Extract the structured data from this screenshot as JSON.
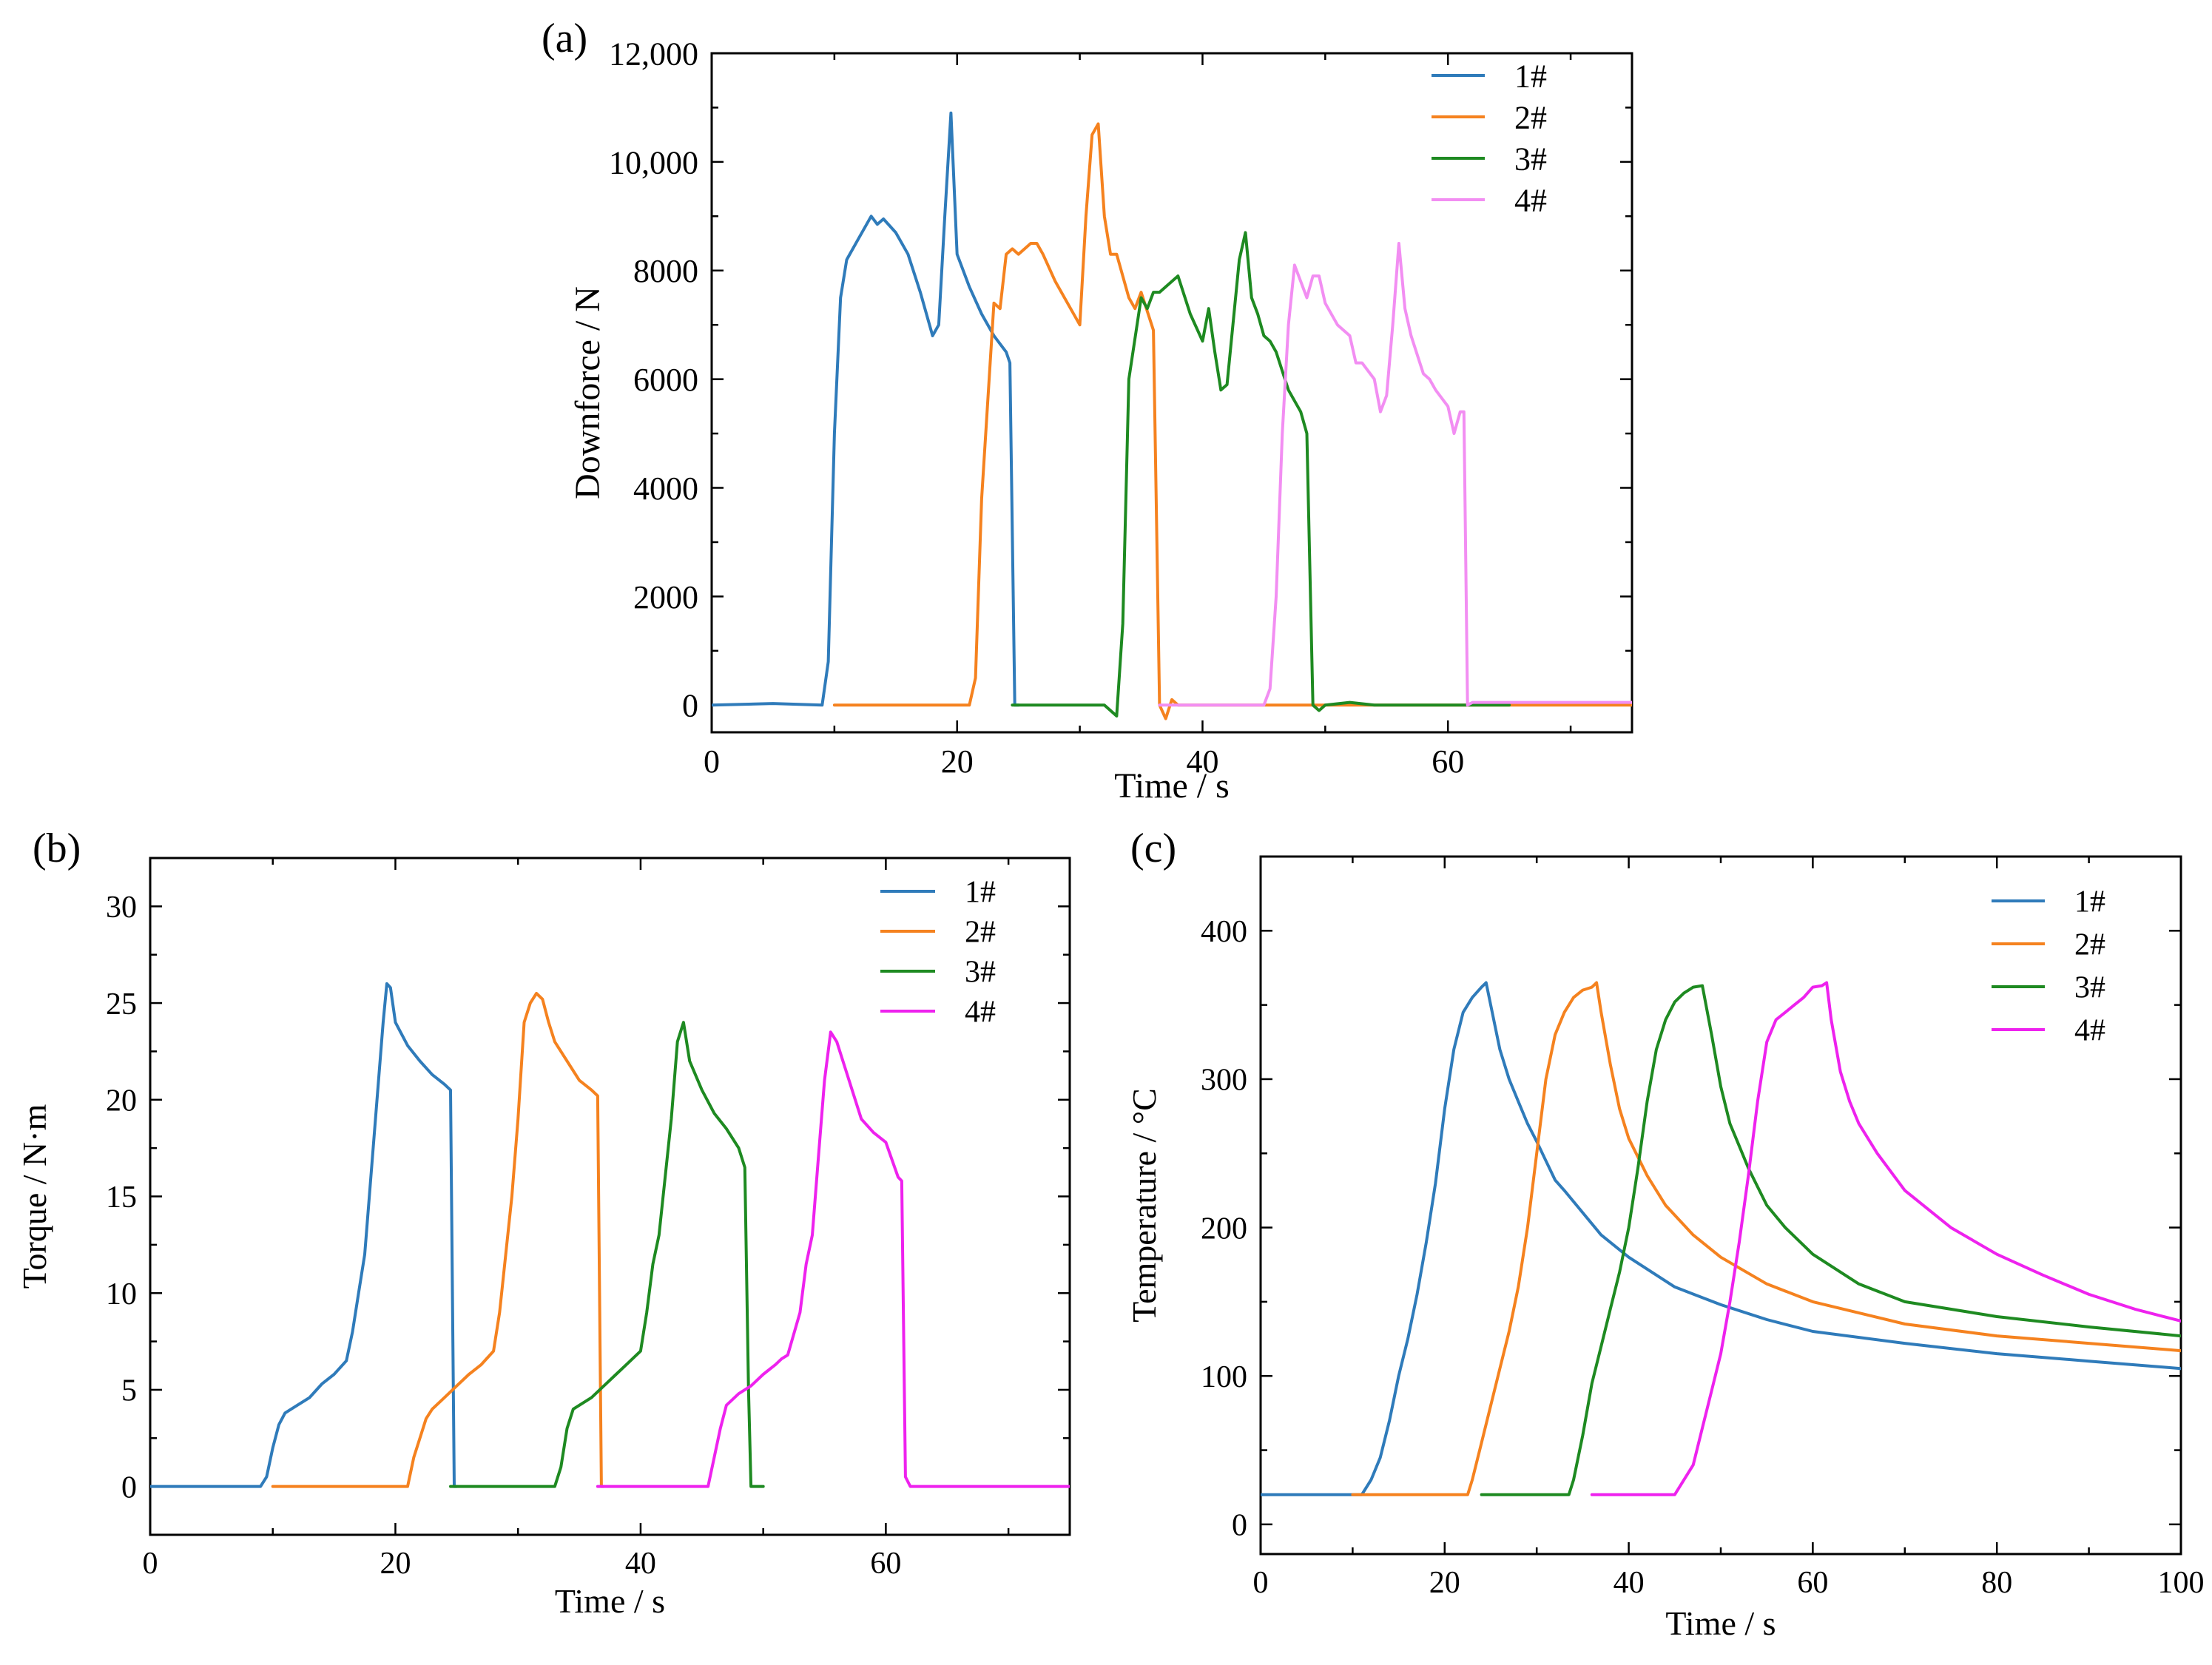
{
  "figure": {
    "panel_labels": [
      "(a)",
      "(b)",
      "(c)"
    ]
  },
  "chart_data": [
    {
      "type": "line",
      "panel": "(a)",
      "title": "",
      "xlabel": "Time / s",
      "ylabel": "Downforce / N",
      "xlim": [
        0,
        75
      ],
      "ylim": [
        -500,
        12000
      ],
      "xticks": [
        0,
        20,
        40,
        60
      ],
      "xtick_labels": [
        "0",
        "20",
        "40",
        "60"
      ],
      "yticks": [
        0,
        2000,
        4000,
        6000,
        8000,
        10000,
        12000
      ],
      "ytick_labels": [
        "0",
        "2000",
        "4000",
        "6000",
        "8000",
        "10,000",
        "12,000"
      ],
      "legend_position": "top-right",
      "series": [
        {
          "name": "1#",
          "color": "#2f7bba",
          "x": [
            0,
            5,
            9,
            9.5,
            10,
            10.5,
            11,
            12,
            13,
            13.5,
            14,
            15,
            16,
            17,
            18,
            18.5,
            19,
            19.5,
            20,
            21,
            22,
            23,
            24,
            24.3,
            24.7,
            25
          ],
          "y": [
            0,
            30,
            0,
            800,
            5000,
            7500,
            8200,
            8600,
            9000,
            8850,
            8950,
            8700,
            8300,
            7600,
            6800,
            7000,
            9000,
            10900,
            8300,
            7700,
            7200,
            6800,
            6500,
            6300,
            0,
            0
          ]
        },
        {
          "name": "2#",
          "color": "#f5821f",
          "x": [
            10,
            20,
            21,
            21.5,
            22,
            23,
            23.5,
            24,
            24.5,
            25,
            26,
            26.5,
            27,
            28,
            29,
            30,
            30.5,
            31,
            31.5,
            32,
            32.5,
            33,
            34,
            34.5,
            35,
            36,
            36.5,
            37,
            37.5,
            38,
            40,
            45,
            50,
            55,
            60,
            65,
            70,
            75
          ],
          "y": [
            0,
            0,
            0,
            500,
            3800,
            7400,
            7300,
            8300,
            8400,
            8300,
            8500,
            8500,
            8300,
            7800,
            7400,
            7000,
            9000,
            10500,
            10700,
            9000,
            8300,
            8300,
            7500,
            7300,
            7600,
            6900,
            0,
            -250,
            100,
            0,
            0,
            0,
            0,
            0,
            0,
            0,
            0,
            0
          ]
        },
        {
          "name": "3#",
          "color": "#1e8a21",
          "x": [
            24.5,
            30,
            32,
            33,
            33.5,
            34,
            35,
            35.5,
            36,
            36.5,
            37,
            38,
            39,
            40,
            40.5,
            41,
            41.5,
            42,
            43,
            43.5,
            44,
            44.5,
            45,
            45.5,
            46,
            47,
            48,
            48.5,
            49,
            49.5,
            50,
            52,
            54,
            60,
            65
          ],
          "y": [
            0,
            0,
            0,
            -200,
            1500,
            6000,
            7500,
            7300,
            7600,
            7600,
            7700,
            7900,
            7200,
            6700,
            7300,
            6500,
            5800,
            5900,
            8200,
            8700,
            7500,
            7200,
            6800,
            6700,
            6500,
            5800,
            5400,
            5000,
            0,
            -100,
            0,
            50,
            0,
            0,
            0
          ]
        },
        {
          "name": "4#",
          "color": "#f28ef2",
          "x": [
            36.5,
            42,
            45,
            45.5,
            46,
            46.5,
            47,
            47.5,
            48,
            48.5,
            49,
            49.5,
            50,
            51,
            52,
            52.5,
            53,
            54,
            54.5,
            55,
            55.5,
            56,
            56.5,
            57,
            58,
            58.5,
            59,
            60,
            60.5,
            61,
            61.3,
            61.6,
            62,
            65,
            70,
            75
          ],
          "y": [
            0,
            0,
            0,
            300,
            2000,
            5000,
            7000,
            8100,
            7800,
            7500,
            7900,
            7900,
            7400,
            7000,
            6800,
            6300,
            6300,
            6000,
            5400,
            5700,
            7000,
            8500,
            7300,
            6800,
            6100,
            6000,
            5800,
            5500,
            5000,
            5400,
            5400,
            0,
            50,
            50,
            50,
            50
          ]
        }
      ]
    },
    {
      "type": "line",
      "panel": "(b)",
      "title": "",
      "xlabel": "Time / s",
      "ylabel": "Torque / N·m",
      "xlim": [
        0,
        75
      ],
      "ylim": [
        -2.5,
        32.5
      ],
      "xticks": [
        0,
        20,
        40,
        60
      ],
      "xtick_labels": [
        "0",
        "20",
        "40",
        "60"
      ],
      "yticks": [
        0,
        5,
        10,
        15,
        20,
        25,
        30
      ],
      "ytick_labels": [
        "0",
        "5",
        "10",
        "15",
        "20",
        "25",
        "30"
      ],
      "legend_position": "top-right",
      "series": [
        {
          "name": "1#",
          "color": "#2f7bba",
          "x": [
            0,
            9,
            9.5,
            10,
            10.5,
            11,
            12,
            13,
            14,
            15,
            16,
            16.5,
            17,
            17.5,
            18,
            18.5,
            19,
            19.3,
            19.6,
            20,
            21,
            22,
            23,
            24,
            24.5,
            24.8,
            25
          ],
          "y": [
            0,
            0,
            0.5,
            2,
            3.2,
            3.8,
            4.2,
            4.6,
            5.3,
            5.8,
            6.5,
            8,
            10,
            12,
            16,
            20,
            24,
            26,
            25.8,
            24,
            22.8,
            22,
            21.3,
            20.8,
            20.5,
            0,
            0
          ]
        },
        {
          "name": "2#",
          "color": "#f5821f",
          "x": [
            10,
            21,
            21.5,
            22,
            22.5,
            23,
            24,
            25,
            26,
            27,
            28,
            28.5,
            29,
            29.5,
            30,
            30.5,
            31,
            31.5,
            32,
            32.5,
            33,
            34,
            35,
            36,
            36.5,
            36.8,
            37
          ],
          "y": [
            0,
            0,
            1.5,
            2.5,
            3.5,
            4,
            4.6,
            5.2,
            5.8,
            6.3,
            7,
            9,
            12,
            15,
            19,
            24,
            25,
            25.5,
            25.2,
            24,
            23,
            22,
            21,
            20.5,
            20.2,
            0,
            0
          ]
        },
        {
          "name": "3#",
          "color": "#1e8a21",
          "x": [
            24.5,
            33,
            33.5,
            34,
            34.5,
            35,
            36,
            37,
            38,
            39,
            40,
            40.5,
            41,
            41.5,
            42,
            42.5,
            43,
            43.5,
            44,
            45,
            46,
            47,
            48,
            48.5,
            48.8,
            49,
            50
          ],
          "y": [
            0,
            0,
            1,
            3,
            4,
            4.2,
            4.6,
            5.2,
            5.8,
            6.4,
            7,
            9,
            11.5,
            13,
            16,
            19,
            23,
            24,
            22,
            20.5,
            19.3,
            18.5,
            17.5,
            16.5,
            5,
            0,
            0
          ]
        },
        {
          "name": "4#",
          "color": "#ee22ee",
          "x": [
            36.5,
            45.5,
            46,
            46.5,
            47,
            48,
            49,
            50,
            51,
            51.5,
            52,
            53,
            53.5,
            54,
            54.5,
            55,
            55.5,
            56,
            57,
            58,
            59,
            60,
            61,
            61.3,
            61.6,
            62,
            75
          ],
          "y": [
            0,
            0,
            1.5,
            3,
            4.2,
            4.8,
            5.2,
            5.8,
            6.3,
            6.6,
            6.8,
            9,
            11.5,
            13,
            17,
            21,
            23.5,
            23,
            21,
            19,
            18.3,
            17.8,
            16,
            15.8,
            0.5,
            0,
            0
          ]
        }
      ]
    },
    {
      "type": "line",
      "panel": "(c)",
      "title": "",
      "xlabel": "Time / s",
      "ylabel": "Temperature / °C",
      "xlim": [
        0,
        100
      ],
      "ylim": [
        -20,
        450
      ],
      "xticks": [
        0,
        20,
        40,
        60,
        80,
        100
      ],
      "xtick_labels": [
        "0",
        "20",
        "40",
        "60",
        "80",
        "100"
      ],
      "yticks": [
        0,
        100,
        200,
        300,
        400
      ],
      "ytick_labels": [
        "0",
        "100",
        "200",
        "300",
        "400"
      ],
      "legend_position": "top-right",
      "series": [
        {
          "name": "1#",
          "color": "#2f7bba",
          "x": [
            0,
            11,
            12,
            13,
            14,
            15,
            16,
            17,
            18,
            19,
            20,
            21,
            22,
            23,
            24,
            24.5,
            25,
            26,
            27,
            28,
            29,
            30,
            31,
            32,
            33,
            35,
            37,
            40,
            45,
            50,
            55,
            60,
            70,
            80,
            90,
            100
          ],
          "y": [
            20,
            20,
            30,
            45,
            70,
            100,
            125,
            155,
            190,
            230,
            280,
            320,
            345,
            355,
            362,
            365,
            350,
            320,
            300,
            285,
            270,
            258,
            245,
            232,
            225,
            210,
            195,
            180,
            160,
            148,
            138,
            130,
            122,
            115,
            110,
            105
          ]
        },
        {
          "name": "2#",
          "color": "#f5821f",
          "x": [
            10,
            22.5,
            23,
            24,
            25,
            26,
            27,
            28,
            29,
            30,
            31,
            32,
            33,
            34,
            35,
            36,
            36.5,
            37,
            38,
            39,
            40,
            42,
            44,
            47,
            50,
            55,
            60,
            70,
            80,
            90,
            100
          ],
          "y": [
            20,
            20,
            30,
            55,
            80,
            105,
            130,
            160,
            200,
            250,
            300,
            330,
            345,
            355,
            360,
            362,
            365,
            345,
            310,
            280,
            260,
            235,
            215,
            195,
            180,
            162,
            150,
            135,
            127,
            122,
            117
          ]
        },
        {
          "name": "3#",
          "color": "#1e8a21",
          "x": [
            24,
            33.5,
            34,
            35,
            36,
            37,
            38,
            39,
            40,
            41,
            42,
            43,
            44,
            45,
            46,
            47,
            48,
            49,
            50,
            51,
            52,
            53,
            55,
            57,
            60,
            65,
            70,
            80,
            90,
            100
          ],
          "y": [
            20,
            20,
            30,
            60,
            95,
            120,
            145,
            170,
            200,
            240,
            285,
            320,
            340,
            352,
            358,
            362,
            363,
            330,
            295,
            270,
            255,
            240,
            215,
            200,
            182,
            162,
            150,
            140,
            133,
            127
          ]
        },
        {
          "name": "4#",
          "color": "#ee22ee",
          "x": [
            36,
            45,
            46,
            47,
            48,
            49,
            50,
            51,
            52,
            53,
            54,
            55,
            56,
            57,
            58,
            59,
            60,
            61,
            61.5,
            62,
            63,
            64,
            65,
            67,
            70,
            75,
            80,
            85,
            90,
            95,
            100
          ],
          "y": [
            20,
            20,
            30,
            40,
            65,
            90,
            115,
            150,
            190,
            235,
            285,
            325,
            340,
            345,
            350,
            355,
            362,
            363,
            365,
            340,
            305,
            285,
            270,
            250,
            225,
            200,
            182,
            168,
            155,
            145,
            137
          ]
        }
      ]
    }
  ]
}
